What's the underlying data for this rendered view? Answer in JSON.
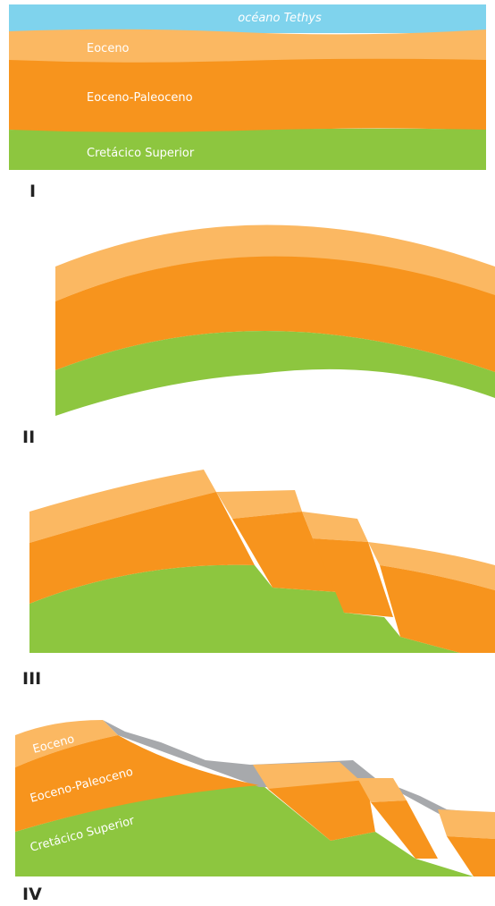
{
  "panels": [
    {
      "label": "I",
      "texts": [
        "océano Tethys",
        "Eoceno",
        "Eoceno-Paleoceno",
        "Cretácico Superior"
      ]
    },
    {
      "label": "II"
    },
    {
      "label": "III"
    },
    {
      "label": "IV",
      "texts": [
        "Eoceno",
        "Eoceno-Paleoceno",
        "Cretácico Superior"
      ]
    }
  ]
}
